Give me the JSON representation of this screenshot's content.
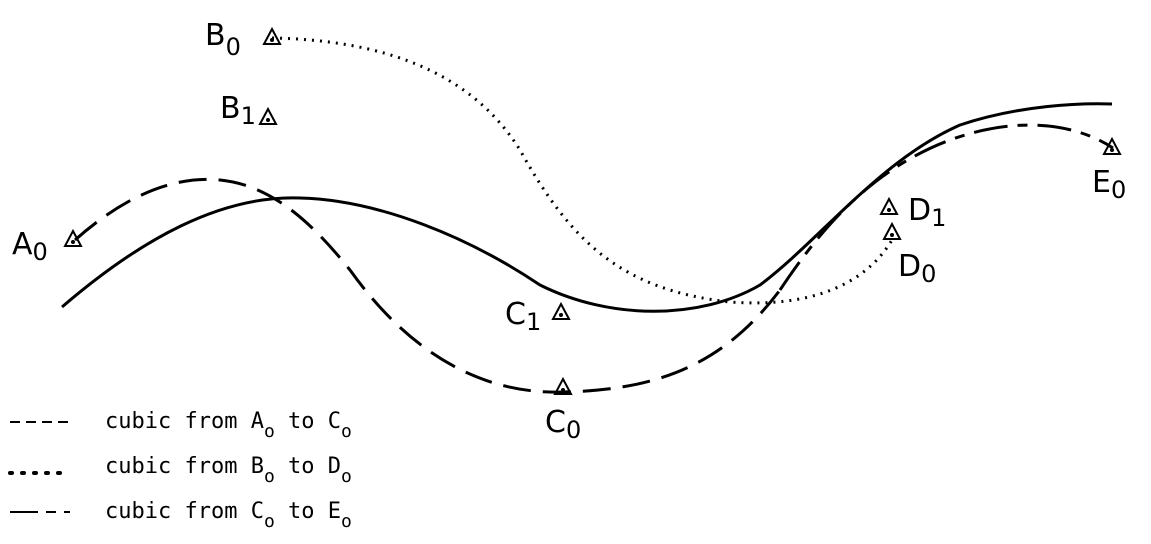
{
  "points": [
    {
      "id": "A0",
      "base": "A",
      "sub": "0"
    },
    {
      "id": "B0",
      "base": "B",
      "sub": "0"
    },
    {
      "id": "B1",
      "base": "B",
      "sub": "1"
    },
    {
      "id": "C1",
      "base": "C",
      "sub": "1"
    },
    {
      "id": "C0",
      "base": "C",
      "sub": "0"
    },
    {
      "id": "D1",
      "base": "D",
      "sub": "1"
    },
    {
      "id": "D0",
      "base": "D",
      "sub": "0"
    },
    {
      "id": "E0",
      "base": "E",
      "sub": "0"
    }
  ],
  "legend": [
    {
      "style": "short-dash",
      "prefix": "cubic from ",
      "from_base": "A",
      "from_sub": "o",
      "mid": " to ",
      "to_base": "C",
      "to_sub": "o"
    },
    {
      "style": "dotted",
      "prefix": "cubic from ",
      "from_base": "B",
      "from_sub": "o",
      "mid": " to ",
      "to_base": "D",
      "to_sub": "o"
    },
    {
      "style": "long-short-dash",
      "prefix": "cubic from ",
      "from_base": "C",
      "from_sub": "o",
      "mid": " to ",
      "to_base": "E",
      "to_sub": "o"
    }
  ]
}
